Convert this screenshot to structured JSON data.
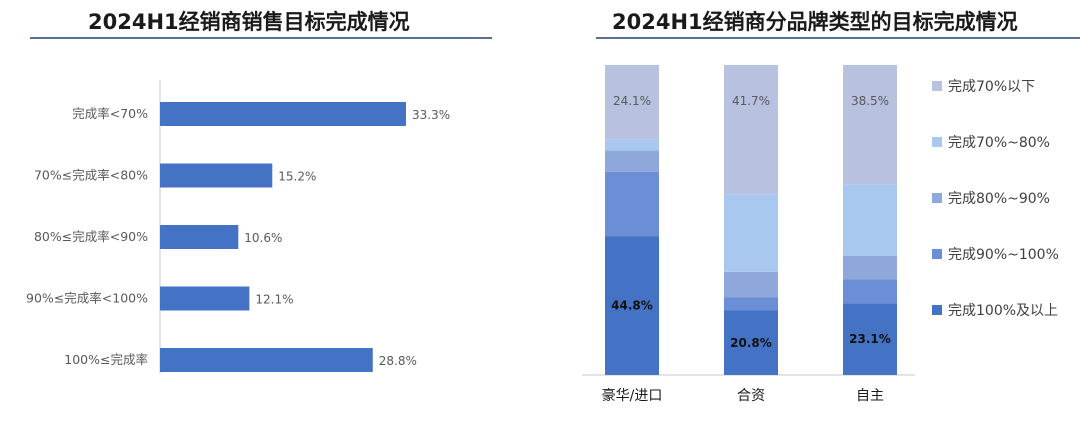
{
  "chart_data": [
    {
      "type": "bar",
      "orientation": "horizontal",
      "title": "2024H1经销商销售目标完成情况",
      "categories": [
        "完成率<70%",
        "70%≤完成率<80%",
        "80%≤完成率<90%",
        "90%≤完成率<100%",
        "100%≤完成率"
      ],
      "values": [
        33.3,
        15.2,
        10.6,
        12.1,
        28.8
      ],
      "value_labels": [
        "33.3%",
        "15.2%",
        "10.6%",
        "12.1%",
        "28.8%"
      ],
      "bar_color": "#4472c4",
      "xlim": [
        0,
        100
      ],
      "grid": false
    },
    {
      "type": "bar",
      "stacked": true,
      "title": "2024H1经销商分品牌类型的目标完成情况",
      "categories": [
        "豪华/进口",
        "合资",
        "自主"
      ],
      "series": [
        {
          "name": "完成100%及以上",
          "color": "#4472c4",
          "values": [
            44.8,
            20.8,
            23.1
          ],
          "labels": [
            "44.8%",
            "20.8%",
            "23.1%"
          ]
        },
        {
          "name": "完成90%~100%",
          "color": "#6a8fd6",
          "values": [
            20.7,
            4.2,
            7.7
          ],
          "labels": [
            "",
            "",
            ""
          ]
        },
        {
          "name": "完成80%~90%",
          "color": "#8fa8dc",
          "values": [
            6.9,
            8.3,
            7.7
          ],
          "labels": [
            "",
            "",
            ""
          ]
        },
        {
          "name": "完成70%~80%",
          "color": "#a9c8f0",
          "values": [
            3.5,
            25.0,
            23.0
          ],
          "labels": [
            "",
            "",
            ""
          ]
        },
        {
          "name": "完成70%以下",
          "color": "#b8c1e0",
          "values": [
            24.1,
            41.7,
            38.5
          ],
          "labels": [
            "24.1%",
            "41.7%",
            "38.5%"
          ]
        }
      ],
      "legend_order": [
        "完成70%以下",
        "完成70%~80%",
        "完成80%~90%",
        "完成90%~100%",
        "完成100%及以上"
      ],
      "legend_position": "right",
      "ylim": [
        0,
        100
      ],
      "grid": false
    }
  ]
}
